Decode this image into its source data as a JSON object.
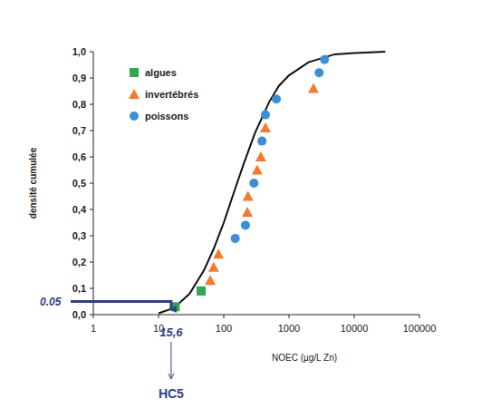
{
  "chart_data": {
    "type": "scatter",
    "x_label": "NOEC (µg/L Zn)",
    "y_label": "densité cumulée",
    "log": "x",
    "legend": "top-left",
    "xlim": [
      1,
      100000
    ],
    "xticks": [
      1,
      10,
      100,
      1000,
      10000,
      100000
    ],
    "ylim": [
      0,
      1.0
    ],
    "yticks": [
      {
        "value": 0,
        "label": "0,0"
      },
      {
        "value": 0.1,
        "label": "0,1"
      },
      {
        "value": 0.2,
        "label": "0,2"
      },
      {
        "value": 0.3,
        "label": "0,3"
      },
      {
        "value": 0.4,
        "label": "0,4"
      },
      {
        "value": 0.5,
        "label": "0,5"
      },
      {
        "value": 0.6,
        "label": "0,6"
      },
      {
        "value": 0.7,
        "label": "0,7"
      },
      {
        "value": 0.8,
        "label": "0,8"
      },
      {
        "value": 0.9,
        "label": "0,9"
      },
      {
        "value": 1.0,
        "label": "1,0"
      }
    ],
    "series": [
      {
        "name": "algues",
        "type": "scatter",
        "marker": "square",
        "color": "#2fa84f",
        "x": [
          18,
          45
        ],
        "values": [
          0.03,
          0.09
        ]
      },
      {
        "name": "invertébrés",
        "type": "scatter",
        "marker": "triangle",
        "color": "#f47a2e",
        "x": [
          62,
          70,
          83,
          230,
          235,
          325,
          370,
          435,
          2370
        ],
        "values": [
          0.13,
          0.18,
          0.23,
          0.39,
          0.45,
          0.55,
          0.6,
          0.71,
          0.86
        ]
      },
      {
        "name": "poissons",
        "type": "scatter",
        "marker": "circle",
        "color": "#3a8fdc",
        "x": [
          150,
          215,
          290,
          385,
          435,
          640,
          2900,
          3500
        ],
        "values": [
          0.29,
          0.34,
          0.5,
          0.66,
          0.76,
          0.82,
          0.92,
          0.97
        ]
      },
      {
        "type": "line",
        "line_style": "solid",
        "color": "#111111",
        "x": [
          10,
          15,
          20,
          30,
          50,
          70,
          100,
          150,
          200,
          300,
          500,
          700,
          1000,
          2000,
          5000,
          10000,
          30000
        ],
        "values": [
          0.005,
          0.02,
          0.04,
          0.08,
          0.17,
          0.25,
          0.35,
          0.48,
          0.57,
          0.69,
          0.81,
          0.87,
          0.91,
          0.96,
          0.99,
          0.995,
          1.0
        ]
      }
    ],
    "annotations": [
      {
        "text": "0.05",
        "y": 0.05
      },
      {
        "text": "15,6",
        "x": 15.6
      },
      {
        "text": "HC5",
        "x": 15.6
      }
    ]
  }
}
